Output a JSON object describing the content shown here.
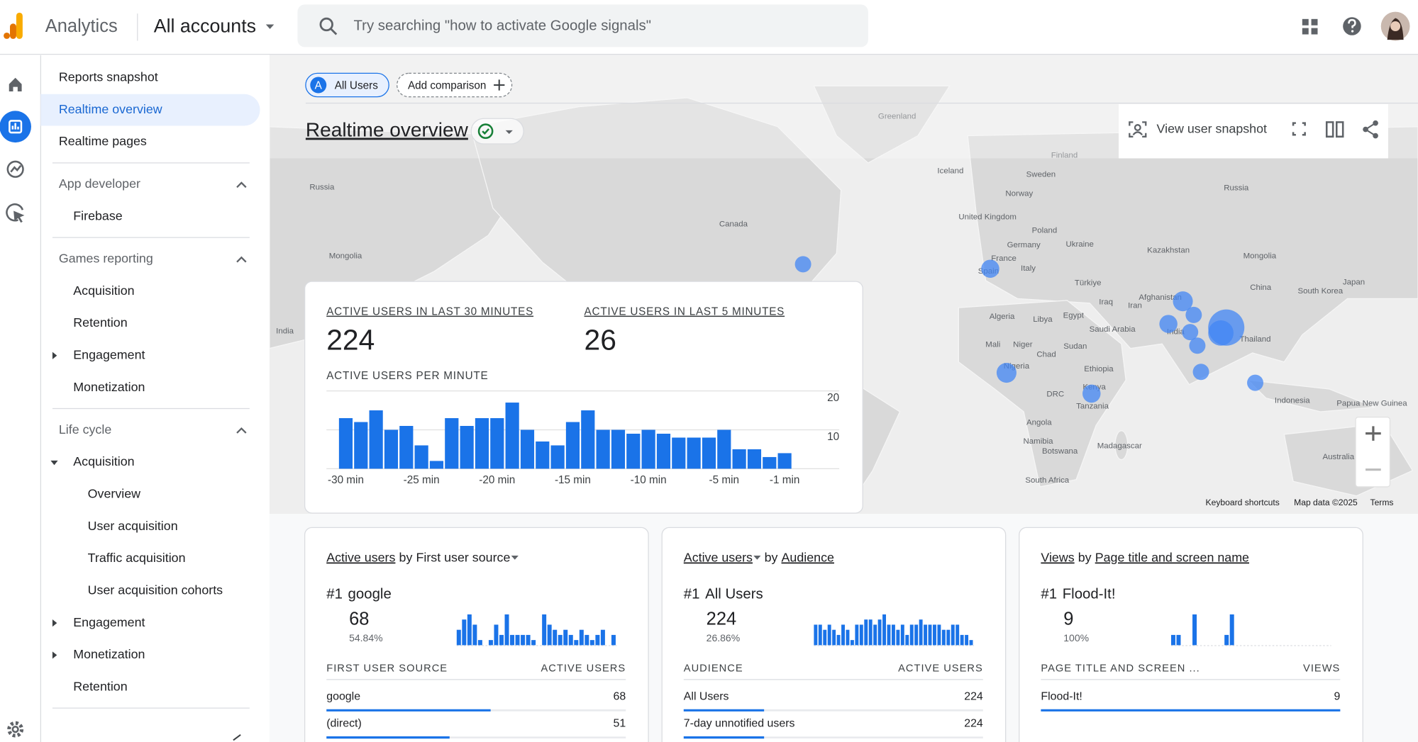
{
  "header": {
    "product": "Analytics",
    "account": "All accounts",
    "search_placeholder": "Try searching \"how to activate Google signals\""
  },
  "sidebar": {
    "links": [
      "Reports snapshot",
      "Realtime overview",
      "Realtime pages"
    ],
    "sections": [
      {
        "title": "App developer",
        "items": [
          {
            "label": "Firebase"
          }
        ]
      },
      {
        "title": "Games reporting",
        "items": [
          {
            "label": "Acquisition"
          },
          {
            "label": "Retention"
          },
          {
            "label": "Engagement",
            "expandable": true
          },
          {
            "label": "Monetization"
          }
        ]
      },
      {
        "title": "Life cycle",
        "items": [
          {
            "label": "Acquisition",
            "expandable": true,
            "children": [
              "Overview",
              "User acquisition",
              "Traffic acquisition",
              "User acquisition cohorts"
            ]
          },
          {
            "label": "Engagement",
            "expandable": true
          },
          {
            "label": "Monetization",
            "expandable": true
          },
          {
            "label": "Retention"
          }
        ]
      }
    ]
  },
  "toolbar": {
    "segment_badge": "A",
    "segment": "All Users",
    "add_comparison": "Add comparison",
    "page_title": "Realtime overview",
    "view_user_snapshot": "View user snapshot"
  },
  "realtime": {
    "active_30_label": "ACTIVE USERS IN LAST 30 MINUTES",
    "active_30": 224,
    "active_5_label": "ACTIVE USERS IN LAST 5 MINUTES",
    "active_5": 26,
    "chart_data": {
      "type": "bar",
      "title": "ACTIVE USERS PER MINUTE",
      "categories": [
        "-30 min",
        null,
        null,
        null,
        null,
        "-25 min",
        null,
        null,
        null,
        null,
        "-20 min",
        null,
        null,
        null,
        null,
        "-15 min",
        null,
        null,
        null,
        null,
        "-10 min",
        null,
        null,
        null,
        null,
        "-5 min",
        null,
        null,
        null,
        "-1 min"
      ],
      "values": [
        13,
        12,
        15,
        10,
        11,
        6,
        2,
        13,
        11,
        13,
        13,
        17,
        10,
        7,
        6,
        12,
        15,
        10,
        10,
        9,
        10,
        9,
        8,
        8,
        8,
        10,
        5,
        5,
        3,
        4
      ],
      "color": "#1a73e8",
      "ylim": [
        0,
        20
      ],
      "yticks": [
        10,
        20
      ],
      "grid": true
    }
  },
  "map": {
    "labels": [
      "Greenland",
      "Russia",
      "Mongolia",
      "India",
      "Canada",
      "Iceland",
      "Finland",
      "Sweden",
      "Norway",
      "United Kingdom",
      "Poland",
      "Germany",
      "Ukraine",
      "France",
      "Spain",
      "Italy",
      "Kazakhstan",
      "Mongolia",
      "Russia",
      "Türkiye",
      "Afghanistan",
      "China",
      "South Korea",
      "Japan",
      "Iran",
      "Iraq",
      "Algeria",
      "Libya",
      "Egypt",
      "Saudi Arabia",
      "Mali",
      "Niger",
      "Sudan",
      "Chad",
      "Nigeria",
      "Ethiopia",
      "India",
      "Thailand",
      "Kenya",
      "DRC",
      "Tanzania",
      "Indonesia",
      "Papua New Guinea",
      "Angola",
      "Namibia",
      "Botswana",
      "Madagascar",
      "South Africa",
      "Australia"
    ],
    "footer": [
      "Keyboard shortcuts",
      "Map data ©2025",
      "Terms"
    ]
  },
  "cards": [
    {
      "metric": "Active users",
      "by": "by",
      "dimension": "First user source",
      "top_rank": "#1",
      "top_name": "google",
      "top_value": 68,
      "top_share": 54.84,
      "top_share_label": "54.84%",
      "sparkline": [
        3,
        5,
        6,
        4,
        1,
        0,
        1,
        4,
        2,
        6,
        2,
        2,
        2,
        2,
        1,
        0,
        6,
        4,
        3,
        2,
        3,
        2,
        1,
        3,
        2,
        1,
        2,
        3,
        0,
        2
      ],
      "columns": [
        "FIRST USER SOURCE",
        "ACTIVE USERS"
      ],
      "rows": [
        [
          "google",
          68
        ],
        [
          "(direct)",
          51
        ]
      ]
    },
    {
      "metric": "Active users",
      "by": "by",
      "dimension": "Audience",
      "top_rank": "#1",
      "top_name": "All Users",
      "top_value": 224,
      "top_share": 26.86,
      "top_share_label": "26.86%",
      "sparkline": [
        4,
        4,
        3,
        4,
        3,
        2,
        4,
        3,
        1,
        4,
        4,
        5,
        5,
        4,
        5,
        6,
        4,
        4,
        3,
        4,
        2,
        4,
        4,
        5,
        4,
        4,
        4,
        4,
        3,
        3,
        4,
        4,
        2,
        2,
        1
      ],
      "columns": [
        "AUDIENCE",
        "ACTIVE USERS"
      ],
      "rows": [
        [
          "All Users",
          224
        ],
        [
          "7-day unnotified users",
          224
        ]
      ]
    },
    {
      "metric": "Views",
      "by": "by",
      "dimension": "Page title and screen name",
      "top_rank": "#1",
      "top_name": "Flood-It!",
      "top_value": 9,
      "top_share": 100,
      "top_share_label": "100%",
      "sparkline": [
        1,
        1,
        0,
        0,
        3,
        0,
        0,
        0,
        0,
        0,
        1,
        3,
        0,
        0,
        0,
        0,
        0,
        0,
        0,
        0,
        0,
        0,
        0,
        0,
        0,
        0,
        0,
        0,
        0,
        0
      ],
      "columns": [
        "PAGE TITLE AND SCREEN ...",
        "VIEWS"
      ],
      "rows": [
        [
          "Flood-It!",
          9
        ]
      ]
    }
  ]
}
